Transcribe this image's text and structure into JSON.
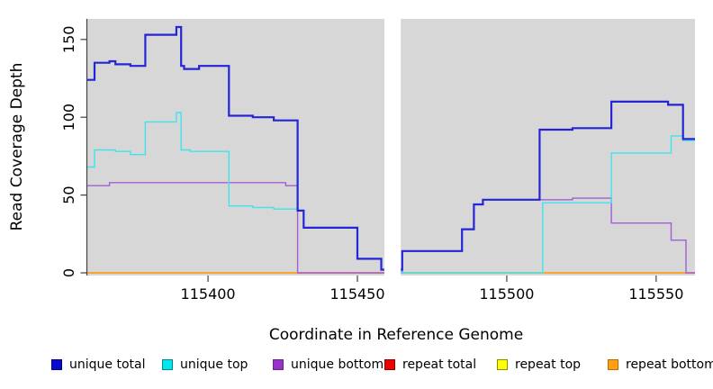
{
  "chart_data": {
    "type": "line",
    "subtype": "step-coverage",
    "title": "",
    "xlabel": "Coordinate in Reference Genome",
    "ylabel": "Read Coverage Depth",
    "xlim": [
      115359.6,
      115563
    ],
    "ylim": [
      0,
      163
    ],
    "xticks": [
      115400,
      115450,
      115500,
      115550
    ],
    "yticks": [
      0,
      50,
      100,
      150
    ],
    "panel_bg": "#D7D7D7",
    "axis_color": "#404040",
    "gap_region": {
      "x_start": 115459,
      "x_end": 115464.5,
      "fill": "#ffffff"
    },
    "series": [
      {
        "name": "repeat total",
        "color": "#DC1414",
        "width": 1.2,
        "steps": [
          [
            115359.6,
            0
          ]
        ]
      },
      {
        "name": "repeat top",
        "color": "#F0F000",
        "width": 1.2,
        "steps": [
          [
            115359.6,
            0
          ]
        ]
      },
      {
        "name": "repeat bottom",
        "color": "#FF9F1A",
        "width": 1.6,
        "steps": [
          [
            115359.6,
            0
          ]
        ]
      },
      {
        "name": "unique bottom",
        "color": "#A05FD6",
        "width": 1.4,
        "steps": [
          [
            115359.6,
            56
          ],
          [
            115367,
            58
          ],
          [
            115426,
            56
          ],
          [
            115430,
            0
          ],
          [
            115465,
            14
          ],
          [
            115485,
            28
          ],
          [
            115489,
            44
          ],
          [
            115492,
            47
          ],
          [
            115522,
            48
          ],
          [
            115535,
            32
          ],
          [
            115555,
            21
          ],
          [
            115560,
            0
          ]
        ]
      },
      {
        "name": "unique top",
        "color": "#3FE3EE",
        "width": 1.4,
        "steps": [
          [
            115359.6,
            68
          ],
          [
            115362,
            79
          ],
          [
            115369,
            78
          ],
          [
            115374,
            76
          ],
          [
            115379,
            97
          ],
          [
            115389.4,
            103
          ],
          [
            115391,
            79
          ],
          [
            115394,
            78
          ],
          [
            115407,
            43
          ],
          [
            115415,
            42
          ],
          [
            115422,
            41
          ],
          [
            115430,
            40
          ],
          [
            115432,
            29
          ],
          [
            115450,
            9
          ],
          [
            115458,
            2
          ],
          [
            115464.5,
            0
          ],
          [
            115512,
            45
          ],
          [
            115535,
            77
          ],
          [
            115555,
            88
          ],
          [
            115559,
            85
          ]
        ]
      },
      {
        "name": "unique total",
        "color": "#2525D6",
        "width": 2.2,
        "steps": [
          [
            115359.6,
            124
          ],
          [
            115362,
            135
          ],
          [
            115367,
            136
          ],
          [
            115369,
            134
          ],
          [
            115374,
            133
          ],
          [
            115379,
            153
          ],
          [
            115389.4,
            158
          ],
          [
            115391,
            133
          ],
          [
            115392,
            131
          ],
          [
            115397,
            133
          ],
          [
            115407,
            101
          ],
          [
            115415,
            100
          ],
          [
            115422,
            98
          ],
          [
            115430,
            40
          ],
          [
            115432,
            29
          ],
          [
            115450,
            9
          ],
          [
            115458,
            2
          ],
          [
            115465,
            14
          ],
          [
            115485,
            28
          ],
          [
            115489,
            44
          ],
          [
            115492,
            47
          ],
          [
            115511,
            92
          ],
          [
            115522,
            93
          ],
          [
            115535,
            110
          ],
          [
            115554,
            108
          ],
          [
            115559,
            86
          ]
        ]
      }
    ]
  },
  "legend": {
    "items": [
      {
        "label": "unique total",
        "fill": "#0A0ACF",
        "border": "#00008B"
      },
      {
        "label": "unique top",
        "fill": "#00E5EE",
        "border": "#008B8B"
      },
      {
        "label": "unique bottom",
        "fill": "#9932CC",
        "border": "#68228B"
      },
      {
        "label": "repeat total",
        "fill": "#EE0000",
        "border": "#8B0000"
      },
      {
        "label": "repeat top",
        "fill": "#FFFF00",
        "border": "#8B8B00"
      },
      {
        "label": "repeat bottom",
        "fill": "#FFA014",
        "border": "#B86D00"
      }
    ]
  }
}
